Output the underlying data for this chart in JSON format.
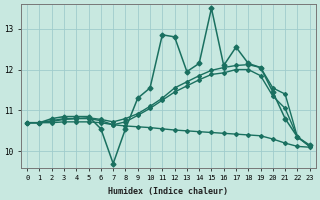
{
  "xlabel": "Humidex (Indice chaleur)",
  "xlim": [
    -0.5,
    23.5
  ],
  "ylim": [
    9.6,
    13.6
  ],
  "yticks": [
    10,
    11,
    12,
    13
  ],
  "xticks": [
    0,
    1,
    2,
    3,
    4,
    5,
    6,
    7,
    8,
    9,
    10,
    11,
    12,
    13,
    14,
    15,
    16,
    17,
    18,
    19,
    20,
    21,
    22,
    23
  ],
  "bg_color": "#c8e8e0",
  "grid_color": "#a0cccc",
  "line_color": "#1a7060",
  "lines": [
    {
      "x": [
        0,
        1,
        2,
        3,
        4,
        5,
        6,
        7,
        8,
        9,
        10,
        11,
        12,
        13,
        14,
        15,
        16,
        17,
        18,
        19,
        20,
        21,
        22,
        23
      ],
      "y": [
        10.7,
        10.7,
        10.8,
        10.85,
        10.85,
        10.85,
        10.55,
        9.7,
        10.55,
        11.3,
        11.55,
        12.85,
        12.8,
        11.95,
        12.15,
        13.5,
        12.1,
        12.55,
        12.15,
        12.05,
        11.45,
        10.8,
        10.35,
        10.15
      ],
      "marker": "D",
      "markersize": 2.5,
      "linewidth": 1.1
    },
    {
      "x": [
        0,
        1,
        2,
        3,
        4,
        5,
        6,
        7,
        8,
        9,
        10,
        11,
        12,
        13,
        14,
        15,
        16,
        17,
        18,
        19,
        20,
        21,
        22,
        23
      ],
      "y": [
        10.7,
        10.7,
        10.75,
        10.8,
        10.8,
        10.82,
        10.78,
        10.72,
        10.8,
        10.92,
        11.1,
        11.3,
        11.55,
        11.7,
        11.85,
        11.98,
        12.05,
        12.1,
        12.12,
        12.05,
        11.55,
        11.4,
        10.35,
        10.12
      ],
      "marker": "D",
      "markersize": 2,
      "linewidth": 1.0
    },
    {
      "x": [
        0,
        1,
        2,
        3,
        4,
        5,
        6,
        7,
        8,
        9,
        10,
        11,
        12,
        13,
        14,
        15,
        16,
        17,
        18,
        19,
        20,
        21,
        22,
        23
      ],
      "y": [
        10.7,
        10.7,
        10.7,
        10.72,
        10.72,
        10.72,
        10.7,
        10.65,
        10.62,
        10.6,
        10.58,
        10.55,
        10.52,
        10.5,
        10.48,
        10.46,
        10.44,
        10.42,
        10.4,
        10.38,
        10.3,
        10.2,
        10.12,
        10.1
      ],
      "marker": "D",
      "markersize": 2,
      "linewidth": 1.0
    },
    {
      "x": [
        0,
        1,
        2,
        3,
        4,
        5,
        6,
        7,
        8,
        9,
        10,
        11,
        12,
        13,
        14,
        15,
        16,
        17,
        18,
        19,
        20,
        21,
        22,
        23
      ],
      "y": [
        10.7,
        10.7,
        10.73,
        10.78,
        10.8,
        10.8,
        10.75,
        10.65,
        10.72,
        10.88,
        11.05,
        11.25,
        11.45,
        11.6,
        11.75,
        11.88,
        11.92,
        12.0,
        12.0,
        11.85,
        11.35,
        11.05,
        10.35,
        10.12
      ],
      "marker": "D",
      "markersize": 2,
      "linewidth": 1.0
    }
  ]
}
